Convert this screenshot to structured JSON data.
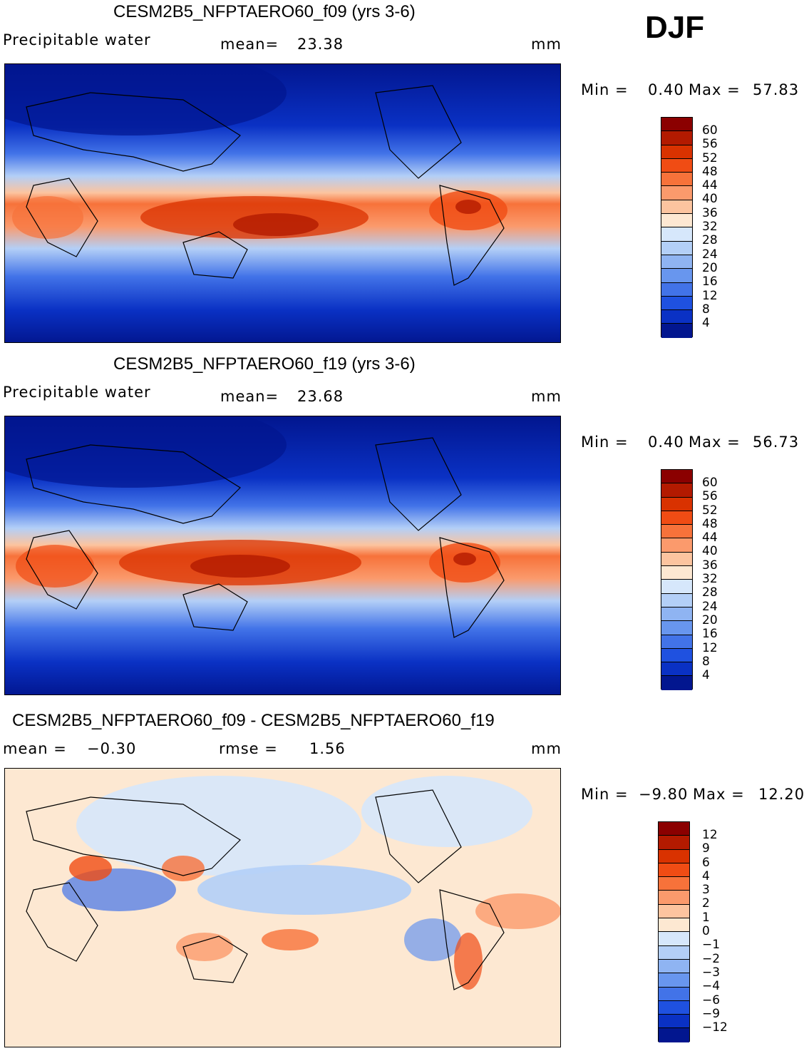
{
  "season": "DJF",
  "panels": [
    {
      "title": "CESM2B5_NFPTAERO60_f09 (yrs 3-6)",
      "variable": "Precipitable water",
      "mean_label": "mean=",
      "mean_value": "23.38",
      "units": "mm",
      "min_label": "Min =",
      "min_value": "0.40",
      "max_label": "Max =",
      "max_value": "57.83",
      "colorbar_labels": [
        "60",
        "56",
        "52",
        "48",
        "44",
        "40",
        "36",
        "32",
        "28",
        "24",
        "20",
        "16",
        "12",
        "8",
        "4"
      ]
    },
    {
      "title": "CESM2B5_NFPTAERO60_f19 (yrs 3-6)",
      "variable": "Precipitable water",
      "mean_label": "mean=",
      "mean_value": "23.68",
      "units": "mm",
      "min_label": "Min =",
      "min_value": "0.40",
      "max_label": "Max =",
      "max_value": "56.73",
      "colorbar_labels": [
        "60",
        "56",
        "52",
        "48",
        "44",
        "40",
        "36",
        "32",
        "28",
        "24",
        "20",
        "16",
        "12",
        "8",
        "4"
      ]
    },
    {
      "title": "CESM2B5_NFPTAERO60_f09 - CESM2B5_NFPTAERO60_f19",
      "mean_label": "mean =",
      "mean_value": "−0.30",
      "rmse_label": "rmse =",
      "rmse_value": "1.56",
      "units": "mm",
      "min_label": "Min =",
      "min_value": "−9.80",
      "max_label": "Max =",
      "max_value": "12.20",
      "colorbar_labels": [
        "12",
        "9",
        "6",
        "4",
        "3",
        "2",
        "1",
        "0",
        "−1",
        "−2",
        "−3",
        "−4",
        "−6",
        "−9",
        "−12"
      ]
    }
  ],
  "colors": {
    "scale": [
      "#8b0000",
      "#b31a00",
      "#d93200",
      "#f04c14",
      "#f7723a",
      "#fb9a6c",
      "#fcc49f",
      "#fde8d2",
      "#d6e7fb",
      "#b3cff7",
      "#8fb4f2",
      "#6896ee",
      "#4273e8",
      "#1f51e0",
      "#0a31c4",
      "#02168f"
    ],
    "diff_scale": [
      "#8b0000",
      "#b31a00",
      "#d93200",
      "#f04c14",
      "#f7723a",
      "#fb9a6c",
      "#fcc49f",
      "#fde8d2",
      "#d6e7fb",
      "#b3cff7",
      "#8fb4f2",
      "#6896ee",
      "#4273e8",
      "#1f51e0",
      "#0a31c4",
      "#02168f"
    ]
  }
}
